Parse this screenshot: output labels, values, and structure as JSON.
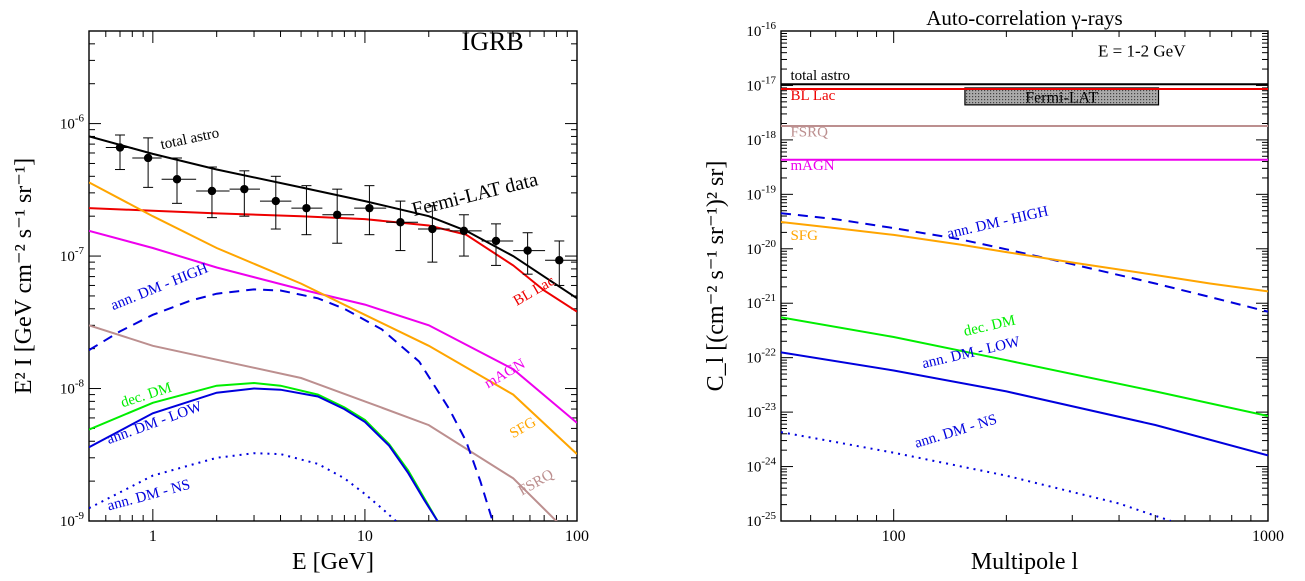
{
  "chart_data": [
    {
      "type": "line",
      "title": "",
      "xlabel": "E  [GeV]",
      "ylabel": "E² I  [GeV cm⁻² s⁻¹ sr⁻¹]",
      "xscale": "log",
      "yscale": "log",
      "xlim": [
        0.5,
        100
      ],
      "ylim": [
        1e-09,
        5e-06
      ],
      "grid": false,
      "x_ticks": [
        {
          "v": 1,
          "t": "1"
        },
        {
          "v": 10,
          "t": "10"
        },
        {
          "v": 100,
          "t": "100"
        }
      ],
      "y_ticks": [
        {
          "v": 1e-09,
          "b": "10",
          "e": "-9"
        },
        {
          "v": 1e-08,
          "b": "10",
          "e": "-8"
        },
        {
          "v": 1e-07,
          "b": "10",
          "e": "-7"
        },
        {
          "v": 1e-06,
          "b": "10",
          "e": "-6"
        }
      ],
      "annotations": [
        {
          "text": "IGRB",
          "x": 40,
          "y": 3.6e-06,
          "size": 26,
          "rot": 0,
          "color": "#000000"
        }
      ],
      "series": [
        {
          "name": "total astro",
          "color": "#000000",
          "dash": "",
          "points": [
            [
              0.5,
              8e-07
            ],
            [
              1,
              5.9e-07
            ],
            [
              2,
              4.5e-07
            ],
            [
              5,
              3.3e-07
            ],
            [
              10,
              2.6e-07
            ],
            [
              20,
              2e-07
            ],
            [
              30,
              1.55e-07
            ],
            [
              50,
              1e-07
            ],
            [
              70,
              7e-08
            ],
            [
              100,
              4.8e-08
            ]
          ],
          "label": {
            "text": "total astro",
            "x": 1.1,
            "y": 6.4e-07,
            "size": 15,
            "rot": -12
          }
        },
        {
          "name": "Fermi-LAT data",
          "color": "#000000",
          "dash": "",
          "points": [],
          "label": {
            "text": "Fermi-LAT data",
            "x": 17,
            "y": 2e-07,
            "size": 20,
            "rot": -14
          }
        },
        {
          "name": "BL Lac",
          "color": "#ee0000",
          "dash": "",
          "points": [
            [
              0.5,
              2.3e-07
            ],
            [
              1,
              2.2e-07
            ],
            [
              2,
              2.1e-07
            ],
            [
              5,
              2e-07
            ],
            [
              10,
              1.9e-07
            ],
            [
              20,
              1.7e-07
            ],
            [
              30,
              1.45e-07
            ],
            [
              50,
              8.5e-08
            ],
            [
              70,
              5.5e-08
            ],
            [
              100,
              3.8e-08
            ]
          ],
          "label": {
            "text": "BL Lac",
            "x": 52,
            "y": 4.2e-08,
            "size": 15,
            "rot": -30
          }
        },
        {
          "name": "mAGN",
          "color": "#ee00ee",
          "dash": "",
          "points": [
            [
              0.5,
              1.55e-07
            ],
            [
              1,
              1.15e-07
            ],
            [
              2,
              8.2e-08
            ],
            [
              5,
              5.6e-08
            ],
            [
              10,
              4.3e-08
            ],
            [
              20,
              3e-08
            ],
            [
              50,
              1.4e-08
            ],
            [
              100,
              5.5e-09
            ]
          ],
          "label": {
            "text": "mAGN",
            "x": 38,
            "y": 1e-08,
            "size": 15,
            "rot": -30
          }
        },
        {
          "name": "SFG",
          "color": "#ffa500",
          "dash": "",
          "points": [
            [
              0.5,
              3.6e-07
            ],
            [
              1,
              2e-07
            ],
            [
              2,
              1.15e-07
            ],
            [
              5,
              6.2e-08
            ],
            [
              10,
              3.6e-08
            ],
            [
              20,
              2.1e-08
            ],
            [
              50,
              9e-09
            ],
            [
              100,
              3.2e-09
            ]
          ],
          "label": {
            "text": "SFG",
            "x": 50,
            "y": 4.2e-09,
            "size": 15,
            "rot": -30
          }
        },
        {
          "name": "FSRQ",
          "color": "#bc8f8f",
          "dash": "",
          "points": [
            [
              0.5,
              3e-08
            ],
            [
              1,
              2.1e-08
            ],
            [
              2,
              1.65e-08
            ],
            [
              5,
              1.2e-08
            ],
            [
              10,
              8e-09
            ],
            [
              20,
              5.3e-09
            ],
            [
              50,
              2.1e-09
            ],
            [
              100,
              7e-10
            ]
          ],
          "label": {
            "text": "FSRQ",
            "x": 55,
            "y": 1.55e-09,
            "size": 15,
            "rot": -30
          }
        },
        {
          "name": "ann. DM - HIGH",
          "color": "#0000dd",
          "dash": "10,7",
          "points": [
            [
              0.5,
              1.95e-08
            ],
            [
              0.7,
              2.7e-08
            ],
            [
              1,
              3.6e-08
            ],
            [
              1.5,
              4.6e-08
            ],
            [
              2,
              5.2e-08
            ],
            [
              3,
              5.6e-08
            ],
            [
              4,
              5.5e-08
            ],
            [
              6,
              4.8e-08
            ],
            [
              8,
              4e-08
            ],
            [
              12,
              2.8e-08
            ],
            [
              18,
              1.6e-08
            ],
            [
              25,
              7e-09
            ],
            [
              30,
              4e-09
            ],
            [
              35,
              2e-09
            ],
            [
              40,
              1e-09
            ]
          ],
          "label": {
            "text": "ann. DM - HIGH",
            "x": 0.65,
            "y": 3.9e-08,
            "size": 15,
            "rot": -22
          }
        },
        {
          "name": "dec. DM",
          "color": "#00ee00",
          "dash": "",
          "points": [
            [
              0.5,
              4.9e-09
            ],
            [
              1,
              7.8e-09
            ],
            [
              2,
              1.05e-08
            ],
            [
              3,
              1.1e-08
            ],
            [
              4,
              1.05e-08
            ],
            [
              6,
              9e-09
            ],
            [
              8,
              7.2e-09
            ],
            [
              10,
              5.8e-09
            ],
            [
              13,
              3.8e-09
            ],
            [
              16,
              2.4e-09
            ],
            [
              19,
              1.5e-09
            ],
            [
              22,
              1e-09
            ]
          ],
          "label": {
            "text": "dec. DM",
            "x": 0.72,
            "y": 7.2e-09,
            "size": 15,
            "rot": -18
          }
        },
        {
          "name": "ann. DM - LOW",
          "color": "#0000dd",
          "dash": "",
          "points": [
            [
              0.5,
              3.6e-09
            ],
            [
              1,
              6.5e-09
            ],
            [
              2,
              9.3e-09
            ],
            [
              3,
              1e-08
            ],
            [
              4,
              9.8e-09
            ],
            [
              6,
              8.7e-09
            ],
            [
              8,
              7e-09
            ],
            [
              10,
              5.6e-09
            ],
            [
              13,
              3.7e-09
            ],
            [
              16,
              2.3e-09
            ],
            [
              19,
              1.45e-09
            ],
            [
              22,
              1e-09
            ]
          ],
          "label": {
            "text": "ann. DM - LOW",
            "x": 0.62,
            "y": 3.8e-09,
            "size": 15,
            "rot": -20
          }
        },
        {
          "name": "ann. DM - NS",
          "color": "#0000dd",
          "dash": "2,5",
          "points": [
            [
              0.5,
              1.25e-09
            ],
            [
              1,
              2.2e-09
            ],
            [
              2,
              3e-09
            ],
            [
              3,
              3.25e-09
            ],
            [
              4,
              3.2e-09
            ],
            [
              6,
              2.7e-09
            ],
            [
              8,
              2.1e-09
            ],
            [
              10,
              1.6e-09
            ],
            [
              12,
              1.25e-09
            ],
            [
              14,
              1e-09
            ]
          ],
          "label": {
            "text": "ann. DM - NS",
            "x": 0.62,
            "y": 1.2e-09,
            "size": 15,
            "rot": -15
          }
        }
      ],
      "error_points": {
        "name": "Fermi-LAT data",
        "color": "#000000",
        "x": [
          0.7,
          0.95,
          1.3,
          1.9,
          2.7,
          3.8,
          5.3,
          7.4,
          10.5,
          14.7,
          20.8,
          29.3,
          41.5,
          58.5,
          82.5
        ],
        "xlo": [
          0.6,
          0.8,
          1.1,
          1.6,
          2.3,
          3.2,
          4.5,
          6.3,
          8.9,
          12.6,
          17.8,
          25.1,
          35.5,
          50,
          70.7
        ],
        "xhi": [
          0.8,
          1.1,
          1.6,
          2.3,
          3.2,
          4.5,
          6.3,
          8.9,
          12.6,
          17.8,
          25.1,
          35.5,
          50,
          70.7,
          100
        ],
        "y": [
          6.6e-07,
          5.5e-07,
          3.8e-07,
          3.1e-07,
          3.2e-07,
          2.6e-07,
          2.3e-07,
          2.05e-07,
          2.3e-07,
          1.8e-07,
          1.6e-07,
          1.55e-07,
          1.3e-07,
          1.1e-07,
          9.3e-08
        ],
        "ylo": [
          4.5e-07,
          3.3e-07,
          2.5e-07,
          1.95e-07,
          2e-07,
          1.6e-07,
          1.45e-07,
          1.25e-07,
          1.45e-07,
          1.1e-07,
          9e-08,
          1e-07,
          8.5e-08,
          7.3e-08,
          6e-08
        ],
        "yhi": [
          8.2e-07,
          7.8e-07,
          5.5e-07,
          4.7e-07,
          4.4e-07,
          4e-07,
          3.4e-07,
          3.2e-07,
          3.4e-07,
          2.6e-07,
          2.4e-07,
          2.05e-07,
          1.75e-07,
          1.5e-07,
          1.3e-07
        ]
      }
    },
    {
      "type": "line",
      "title": "Auto-correlation   γ-rays",
      "xlabel": "Multipole l",
      "ylabel": "C_l [(cm⁻² s⁻¹ sr⁻¹)² sr]",
      "xscale": "log",
      "yscale": "log",
      "xlim": [
        50,
        1000
      ],
      "ylim": [
        1e-25,
        1e-16
      ],
      "grid": false,
      "x_ticks": [
        {
          "v": 100,
          "t": "100"
        },
        {
          "v": 1000,
          "t": "1000"
        }
      ],
      "y_ticks": [
        {
          "v": 1e-25,
          "b": "10",
          "e": "-25"
        },
        {
          "v": 1e-24,
          "b": "10",
          "e": "-24"
        },
        {
          "v": 1e-23,
          "b": "10",
          "e": "-23"
        },
        {
          "v": 1e-22,
          "b": "10",
          "e": "-22"
        },
        {
          "v": 1e-21,
          "b": "10",
          "e": "-21"
        },
        {
          "v": 1e-20,
          "b": "10",
          "e": "-20"
        },
        {
          "v": 1e-19,
          "b": "10",
          "e": "-19"
        },
        {
          "v": 1e-18,
          "b": "10",
          "e": "-18"
        },
        {
          "v": 1e-17,
          "b": "10",
          "e": "-17"
        },
        {
          "v": 1e-16,
          "b": "10",
          "e": "-16"
        }
      ],
      "annotations": [
        {
          "text": "E = 1-2 GeV",
          "x": 460,
          "y": 3.4e-17,
          "size": 17,
          "rot": 0,
          "color": "#000000"
        }
      ],
      "band": {
        "label": "Fermi-LAT",
        "color": "#999999",
        "x": [
          155,
          510
        ],
        "y": [
          4.4e-18,
          9e-18
        ]
      },
      "series": [
        {
          "name": "total astro",
          "color": "#000000",
          "dash": "",
          "points": [
            [
              50,
              1.05e-17
            ],
            [
              1000,
              1.05e-17
            ]
          ],
          "label": {
            "text": "total astro",
            "x": 53,
            "y": 1.25e-17,
            "size": 15,
            "rot": 0
          }
        },
        {
          "name": "BL Lac",
          "color": "#ee0000",
          "dash": "",
          "points": [
            [
              50,
              8.6e-18
            ],
            [
              1000,
              8.6e-18
            ]
          ],
          "label": {
            "text": "BL Lac",
            "x": 53,
            "y": 5.4e-18,
            "size": 15,
            "rot": 0
          }
        },
        {
          "name": "FSRQ",
          "color": "#bc8f8f",
          "dash": "",
          "points": [
            [
              50,
              1.8e-18
            ],
            [
              1000,
              1.8e-18
            ]
          ],
          "label": {
            "text": "FSRQ",
            "x": 53,
            "y": 1.15e-18,
            "size": 15,
            "rot": 0
          }
        },
        {
          "name": "mAGN",
          "color": "#ee00ee",
          "dash": "",
          "points": [
            [
              50,
              4.3e-19
            ],
            [
              1000,
              4.3e-19
            ]
          ],
          "label": {
            "text": "mAGN",
            "x": 53,
            "y": 2.8e-19,
            "size": 15,
            "rot": 0
          }
        },
        {
          "name": "ann. DM - HIGH",
          "color": "#0000dd",
          "dash": "10,7",
          "points": [
            [
              50,
              4.5e-20
            ],
            [
              70,
              3.5e-20
            ],
            [
              100,
              2.4e-20
            ],
            [
              150,
              1.5e-20
            ],
            [
              200,
              9.8e-21
            ],
            [
              300,
              5.2e-21
            ],
            [
              500,
              2.3e-21
            ],
            [
              700,
              1.3e-21
            ],
            [
              1000,
              7e-22
            ]
          ],
          "label": {
            "text": "ann. DM - HIGH",
            "x": 140,
            "y": 1.55e-20,
            "size": 15,
            "rot": -13
          }
        },
        {
          "name": "SFG",
          "color": "#ffa500",
          "dash": "",
          "points": [
            [
              50,
              3.1e-20
            ],
            [
              70,
              2.4e-20
            ],
            [
              100,
              1.8e-20
            ],
            [
              150,
              1.2e-20
            ],
            [
              200,
              8.7e-21
            ],
            [
              300,
              5.6e-21
            ],
            [
              500,
              3.3e-21
            ],
            [
              700,
              2.3e-21
            ],
            [
              1000,
              1.65e-21
            ]
          ],
          "label": {
            "text": "SFG",
            "x": 53,
            "y": 1.45e-20,
            "size": 15,
            "rot": 0
          }
        },
        {
          "name": "dec. DM",
          "color": "#00ee00",
          "dash": "",
          "points": [
            [
              50,
              5.5e-22
            ],
            [
              100,
              2.4e-22
            ],
            [
              200,
              9e-23
            ],
            [
              500,
              2.4e-23
            ],
            [
              1000,
              8.5e-24
            ]
          ],
          "label": {
            "text": "dec. DM",
            "x": 155,
            "y": 2.5e-22,
            "size": 15,
            "rot": -13
          }
        },
        {
          "name": "ann. DM - LOW",
          "color": "#0000dd",
          "dash": "",
          "points": [
            [
              50,
              1.25e-22
            ],
            [
              100,
              5.8e-23
            ],
            [
              200,
              2.4e-23
            ],
            [
              500,
              5.8e-24
            ],
            [
              1000,
              1.6e-24
            ]
          ],
          "label": {
            "text": "ann. DM - LOW",
            "x": 120,
            "y": 6.4e-23,
            "size": 15,
            "rot": -13
          }
        },
        {
          "name": "ann. DM - NS",
          "color": "#0000dd",
          "dash": "2,5",
          "points": [
            [
              50,
              4.3e-24
            ],
            [
              100,
              1.8e-24
            ],
            [
              200,
              6.8e-25
            ],
            [
              400,
              2.1e-25
            ],
            [
              550,
              1e-25
            ]
          ],
          "label": {
            "text": "ann. DM - NS",
            "x": 115,
            "y": 2.2e-24,
            "size": 15,
            "rot": -17
          }
        }
      ]
    }
  ]
}
